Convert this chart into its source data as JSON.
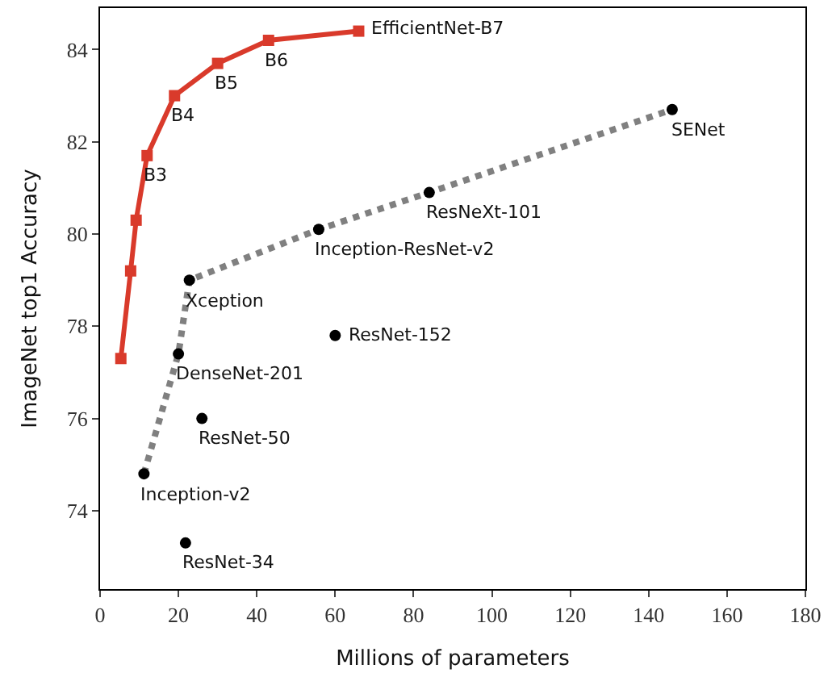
{
  "chart_data": {
    "type": "line",
    "xlabel": "Millions of parameters",
    "ylabel": "ImageNet top1 Accuracy",
    "xlim": [
      0,
      180
    ],
    "xticks": [
      0,
      20,
      40,
      60,
      80,
      100,
      120,
      140,
      160,
      180
    ],
    "ylim": [
      72.3,
      84.9
    ],
    "yticks": [
      74,
      76,
      78,
      80,
      82,
      84
    ],
    "series": [
      {
        "color": "#d93a2b",
        "marker": "square",
        "line_style": "solid",
        "x": [
          5.3,
          7.8,
          9.2,
          12,
          19,
          30,
          43,
          66
        ],
        "values": [
          77.3,
          79.2,
          80.3,
          81.7,
          83.0,
          83.7,
          84.2,
          84.4
        ]
      },
      {
        "color": "#808080",
        "marker": "none",
        "line_style": "dotted",
        "x": [
          11.2,
          20,
          22.8,
          55.8,
          84,
          146
        ],
        "values": [
          74.8,
          77.4,
          79.0,
          80.1,
          80.9,
          82.7
        ]
      },
      {
        "type": "scatter",
        "color": "#000000",
        "marker": "circle",
        "x": [
          146,
          84,
          55.8,
          22.8,
          60,
          20,
          26,
          11.2,
          21.8
        ],
        "values": [
          82.7,
          80.9,
          80.1,
          79.0,
          77.8,
          77.4,
          76.0,
          74.8,
          73.3
        ]
      }
    ],
    "annotations": [
      {
        "text": "EfficientNet-B7",
        "x": 66,
        "y": 84.4
      },
      {
        "text": "B6",
        "x": 43,
        "y": 84.2
      },
      {
        "text": "B5",
        "x": 30,
        "y": 83.7
      },
      {
        "text": "B4",
        "x": 19,
        "y": 83.0
      },
      {
        "text": "B3",
        "x": 12,
        "y": 81.7
      },
      {
        "text": "SENet",
        "x": 146,
        "y": 82.7
      },
      {
        "text": "ResNeXt-101",
        "x": 84,
        "y": 80.9
      },
      {
        "text": "Inception-ResNet-v2",
        "x": 55.8,
        "y": 80.1
      },
      {
        "text": "Xception",
        "x": 22.8,
        "y": 79.0
      },
      {
        "text": "ResNet-152",
        "x": 60,
        "y": 77.8
      },
      {
        "text": "DenseNet-201",
        "x": 20,
        "y": 77.4
      },
      {
        "text": "ResNet-50",
        "x": 26,
        "y": 76.0
      },
      {
        "text": "Inception-v2",
        "x": 11.2,
        "y": 74.8
      },
      {
        "text": "ResNet-34",
        "x": 21.8,
        "y": 73.3
      }
    ]
  }
}
